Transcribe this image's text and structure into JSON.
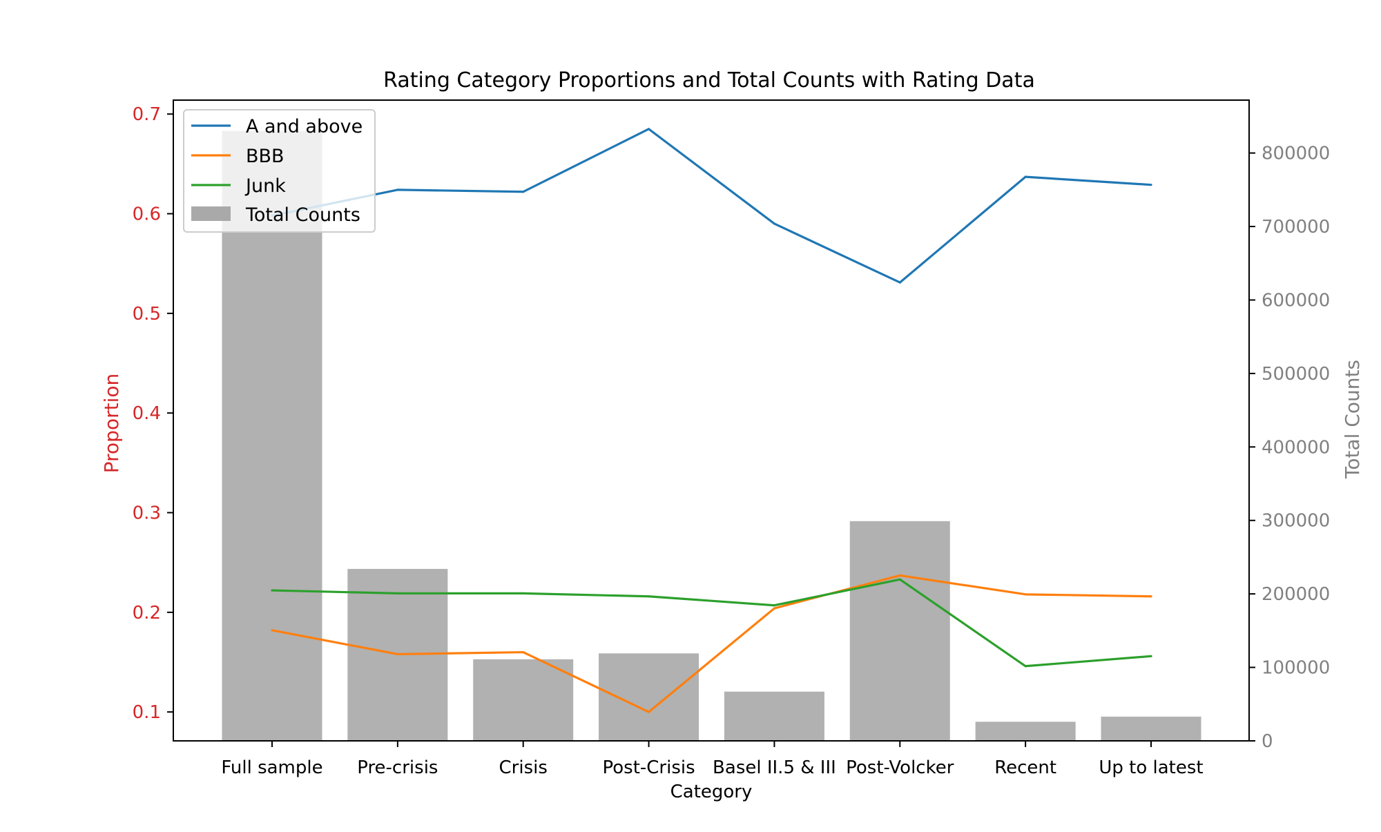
{
  "chart_data": {
    "type": "bar",
    "title": "Rating Category Proportions and Total Counts with Rating Data",
    "xlabel": "Category",
    "ylabel_left": "Proportion",
    "ylabel_right": "Total Counts",
    "categories": [
      "Full sample",
      "Pre-crisis",
      "Crisis",
      "Post-Crisis",
      "Basel II.5 & III",
      "Post-Volcker",
      "Recent",
      "Up to latest"
    ],
    "bars": {
      "name": "Total Counts",
      "axis": "right",
      "color": "#a9a9a9",
      "values": [
        830000,
        234000,
        111000,
        119000,
        67000,
        299000,
        26000,
        33000
      ]
    },
    "series": [
      {
        "name": "A and above",
        "axis": "left",
        "color": "#1f77b4",
        "values": [
          0.598,
          0.624,
          0.622,
          0.685,
          0.59,
          0.531,
          0.637,
          0.629
        ]
      },
      {
        "name": "BBB",
        "axis": "left",
        "color": "#ff7f0e",
        "values": [
          0.182,
          0.158,
          0.16,
          0.1,
          0.204,
          0.237,
          0.218,
          0.216
        ]
      },
      {
        "name": "Junk",
        "axis": "left",
        "color": "#2ca02c",
        "values": [
          0.222,
          0.219,
          0.219,
          0.216,
          0.207,
          0.233,
          0.146,
          0.156
        ]
      }
    ],
    "ylim_left": [
      0.071,
      0.714
    ],
    "ylim_right": [
      0,
      872000
    ],
    "yticks_left": [
      "0.1",
      "0.2",
      "0.3",
      "0.4",
      "0.5",
      "0.6",
      "0.7"
    ],
    "yticks_right": [
      "0",
      "100000",
      "200000",
      "300000",
      "400000",
      "500000",
      "600000",
      "700000",
      "800000"
    ],
    "legend": {
      "position": "upper-left",
      "entries": [
        "A and above",
        "BBB",
        "Junk",
        "Total Counts"
      ]
    },
    "grid": false
  }
}
